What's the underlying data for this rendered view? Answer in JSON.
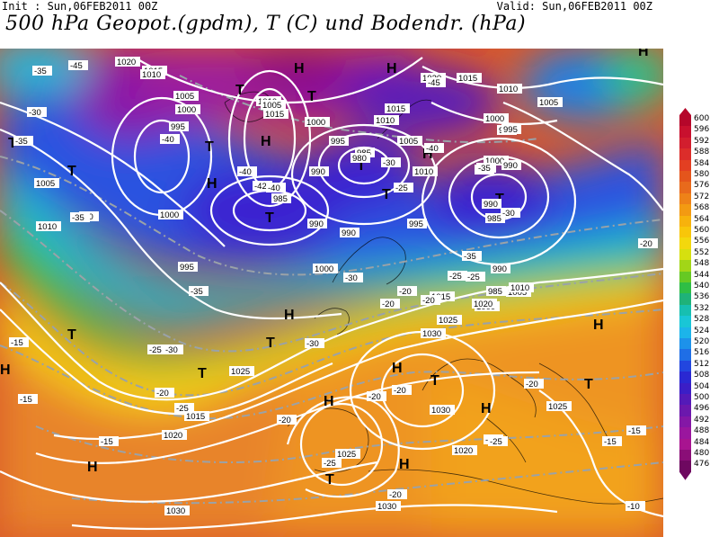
{
  "header": {
    "init": "Init : Sun,06FEB2011 00Z",
    "valid": "Valid: Sun,06FEB2011 00Z",
    "title": "500 hPa Geopot.(gpdm), T (C) und Bodendr. (hPa)"
  },
  "legend": {
    "values": [
      "600",
      "596",
      "592",
      "588",
      "584",
      "580",
      "576",
      "572",
      "568",
      "564",
      "560",
      "556",
      "552",
      "548",
      "544",
      "540",
      "536",
      "532",
      "528",
      "524",
      "520",
      "516",
      "512",
      "508",
      "504",
      "500",
      "496",
      "492",
      "488",
      "484",
      "480",
      "476"
    ],
    "colors": [
      "#b5062a",
      "#c8102e",
      "#d21e2e",
      "#dc2d2a",
      "#e33f22",
      "#e4551c",
      "#e86a1c",
      "#ee8218",
      "#f39a12",
      "#f7b20c",
      "#f8c60a",
      "#f3d80d",
      "#d6e00f",
      "#a2d617",
      "#66c923",
      "#2fbe45",
      "#1fb279",
      "#17bfb0",
      "#19c6d6",
      "#1cb4ea",
      "#1d92ea",
      "#1f6ee6",
      "#2246df",
      "#2a28d2",
      "#3b1ec6",
      "#541ab8",
      "#6b18ad",
      "#8417a6",
      "#9a169e",
      "#a81490",
      "#8a0e77",
      "#6e0860"
    ]
  },
  "map": {
    "label_symbols": {
      "high": "H",
      "low": "T"
    },
    "pressure_labels": [
      "1020",
      "1015",
      "1010",
      "1005",
      "1000",
      "995",
      "1010",
      "1005",
      "1015",
      "1000",
      "995",
      "990",
      "1005",
      "1010",
      "1000",
      "995",
      "990",
      "985",
      "985",
      "980",
      "1010",
      "1015",
      "1000",
      "995",
      "990",
      "1020",
      "1015",
      "1010",
      "1005",
      "1000",
      "995",
      "990",
      "985",
      "1005",
      "1010",
      "1000",
      "995",
      "990",
      "985",
      "990",
      "1000",
      "1005",
      "1010",
      "1015",
      "1020",
      "1025",
      "1030",
      "1015",
      "1020",
      "1025",
      "1030",
      "1020",
      "1025",
      "1030",
      "1030",
      "1025"
    ],
    "temp_labels": [
      "-35",
      "-45",
      "-30",
      "-35",
      "-40",
      "-40",
      "-42",
      "-40",
      "-35",
      "-30",
      "-25",
      "-20",
      "-30",
      "-35",
      "-45",
      "-40",
      "-35",
      "-30",
      "-25",
      "-20",
      "-35",
      "-30",
      "-35",
      "-25",
      "-20",
      "-15",
      "-20",
      "-25",
      "-30",
      "-25",
      "-20",
      "-15",
      "-20",
      "-25",
      "-20",
      "-15",
      "-20",
      "-25",
      "-20",
      "-15",
      "-15",
      "-25",
      "-10",
      "-20",
      "-30"
    ]
  }
}
